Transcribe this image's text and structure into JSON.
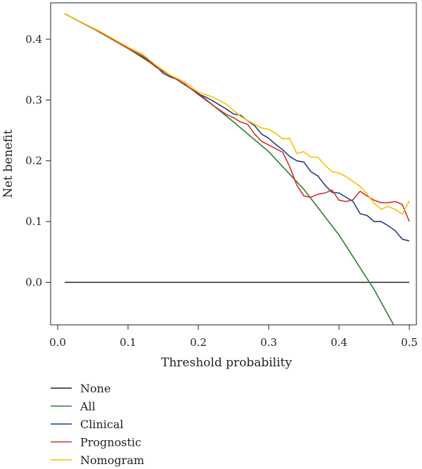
{
  "chart_data": {
    "type": "line",
    "xlabel": "Threshold probability",
    "ylabel": "Net benefit",
    "xlim": [
      -0.01,
      0.51
    ],
    "ylim": [
      -0.07,
      0.46
    ],
    "x_ticks": [
      0.0,
      0.1,
      0.2,
      0.3,
      0.4,
      0.5
    ],
    "x_tick_labels": [
      "0.0",
      "0.1",
      "0.2",
      "0.3",
      "0.4",
      "0.5"
    ],
    "y_ticks": [
      0.0,
      0.1,
      0.2,
      0.3,
      0.4
    ],
    "y_tick_labels": [
      "0.0",
      "0.1",
      "0.2",
      "0.3",
      "0.4"
    ],
    "grid": false,
    "legend": "bottom-left, below plot",
    "series": [
      {
        "name": "None",
        "color": "#222222",
        "x": [
          0.01,
          0.5
        ],
        "y": [
          0.0,
          0.0
        ]
      },
      {
        "name": "All",
        "color": "#2e7d32",
        "x": [
          0.01,
          0.05,
          0.1,
          0.15,
          0.2,
          0.25,
          0.3,
          0.35,
          0.4,
          0.45,
          0.48,
          0.5
        ],
        "y": [
          0.442,
          0.418,
          0.385,
          0.348,
          0.311,
          0.264,
          0.215,
          0.153,
          0.078,
          -0.012,
          -0.075,
          -0.12
        ]
      },
      {
        "name": "Clinical",
        "color": "#1f3f7a",
        "x": [
          0.01,
          0.06,
          0.1,
          0.12,
          0.13,
          0.14,
          0.15,
          0.16,
          0.17,
          0.18,
          0.19,
          0.2,
          0.21,
          0.22,
          0.23,
          0.24,
          0.25,
          0.26,
          0.27,
          0.28,
          0.29,
          0.3,
          0.31,
          0.32,
          0.33,
          0.34,
          0.35,
          0.36,
          0.37,
          0.38,
          0.39,
          0.4,
          0.41,
          0.42,
          0.43,
          0.44,
          0.45,
          0.46,
          0.47,
          0.48,
          0.49,
          0.5
        ],
        "y": [
          0.442,
          0.412,
          0.385,
          0.373,
          0.365,
          0.356,
          0.344,
          0.338,
          0.334,
          0.326,
          0.318,
          0.31,
          0.305,
          0.299,
          0.292,
          0.285,
          0.277,
          0.275,
          0.266,
          0.258,
          0.244,
          0.237,
          0.227,
          0.218,
          0.207,
          0.2,
          0.198,
          0.182,
          0.175,
          0.16,
          0.148,
          0.147,
          0.14,
          0.133,
          0.113,
          0.11,
          0.1,
          0.1,
          0.093,
          0.085,
          0.071,
          0.068
        ]
      },
      {
        "name": "Prognostic",
        "color": "#d32f2f",
        "x": [
          0.01,
          0.06,
          0.1,
          0.12,
          0.14,
          0.16,
          0.18,
          0.2,
          0.22,
          0.24,
          0.25,
          0.26,
          0.27,
          0.28,
          0.29,
          0.3,
          0.31,
          0.32,
          0.33,
          0.34,
          0.35,
          0.36,
          0.37,
          0.38,
          0.39,
          0.4,
          0.41,
          0.42,
          0.43,
          0.44,
          0.45,
          0.46,
          0.47,
          0.48,
          0.49,
          0.5
        ],
        "y": [
          0.442,
          0.412,
          0.385,
          0.372,
          0.354,
          0.34,
          0.327,
          0.309,
          0.292,
          0.276,
          0.271,
          0.264,
          0.26,
          0.244,
          0.232,
          0.226,
          0.22,
          0.214,
          0.19,
          0.16,
          0.142,
          0.14,
          0.145,
          0.147,
          0.152,
          0.135,
          0.133,
          0.136,
          0.15,
          0.142,
          0.135,
          0.131,
          0.131,
          0.133,
          0.128,
          0.1
        ]
      },
      {
        "name": "Nomogram",
        "color": "#f2c400",
        "x": [
          0.01,
          0.06,
          0.1,
          0.12,
          0.14,
          0.16,
          0.18,
          0.2,
          0.22,
          0.24,
          0.26,
          0.28,
          0.29,
          0.3,
          0.31,
          0.32,
          0.33,
          0.34,
          0.35,
          0.36,
          0.37,
          0.38,
          0.39,
          0.4,
          0.41,
          0.42,
          0.43,
          0.44,
          0.45,
          0.46,
          0.47,
          0.48,
          0.49,
          0.5
        ],
        "y": [
          0.442,
          0.413,
          0.387,
          0.376,
          0.357,
          0.341,
          0.33,
          0.313,
          0.305,
          0.293,
          0.273,
          0.26,
          0.254,
          0.252,
          0.245,
          0.236,
          0.237,
          0.212,
          0.215,
          0.206,
          0.206,
          0.193,
          0.182,
          0.18,
          0.174,
          0.166,
          0.158,
          0.145,
          0.13,
          0.12,
          0.125,
          0.12,
          0.112,
          0.134
        ]
      }
    ]
  }
}
